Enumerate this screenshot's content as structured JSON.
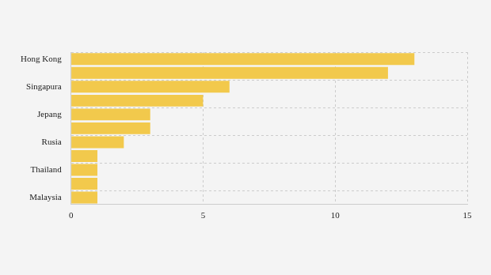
{
  "chart_data": {
    "type": "bar",
    "orientation": "horizontal",
    "categories": [
      "Hong Kong",
      null,
      "Singapura",
      null,
      "Jepang",
      null,
      "Rusia",
      null,
      "Thailand",
      null,
      "Malaysia"
    ],
    "values": [
      13,
      12,
      6,
      5,
      3,
      3,
      2,
      1,
      1,
      1,
      1
    ],
    "color": "#f2c94c",
    "xlim": [
      0,
      15
    ],
    "xticks": [
      0,
      5,
      10,
      15
    ],
    "grid": true
  }
}
